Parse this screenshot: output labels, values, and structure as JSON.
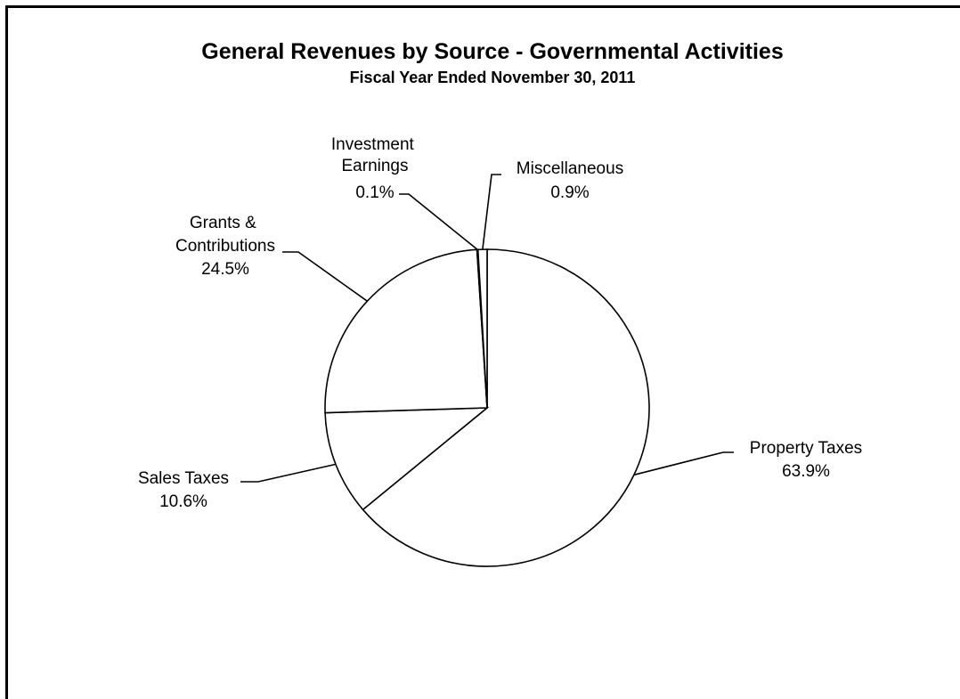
{
  "chart_data": {
    "type": "pie",
    "title": "General Revenues by Source - Governmental Activities",
    "subtitle": "Fiscal Year Ended November 30, 2011",
    "slices": [
      {
        "name": "Property Taxes",
        "percent_label": "63.9%",
        "value": 63.9
      },
      {
        "name": "Sales Taxes",
        "percent_label": "10.6%",
        "value": 10.6
      },
      {
        "name": "Grants & Contributions",
        "percent_label": "24.5%",
        "value": 24.5
      },
      {
        "name": "Investment Earnings",
        "percent_label": "0.1%",
        "value": 0.1
      },
      {
        "name": "Miscellaneous",
        "percent_label": "0.9%",
        "value": 0.9
      }
    ],
    "colors": {
      "fill": "#ffffff",
      "stroke": "#000000"
    },
    "legend": "none"
  }
}
